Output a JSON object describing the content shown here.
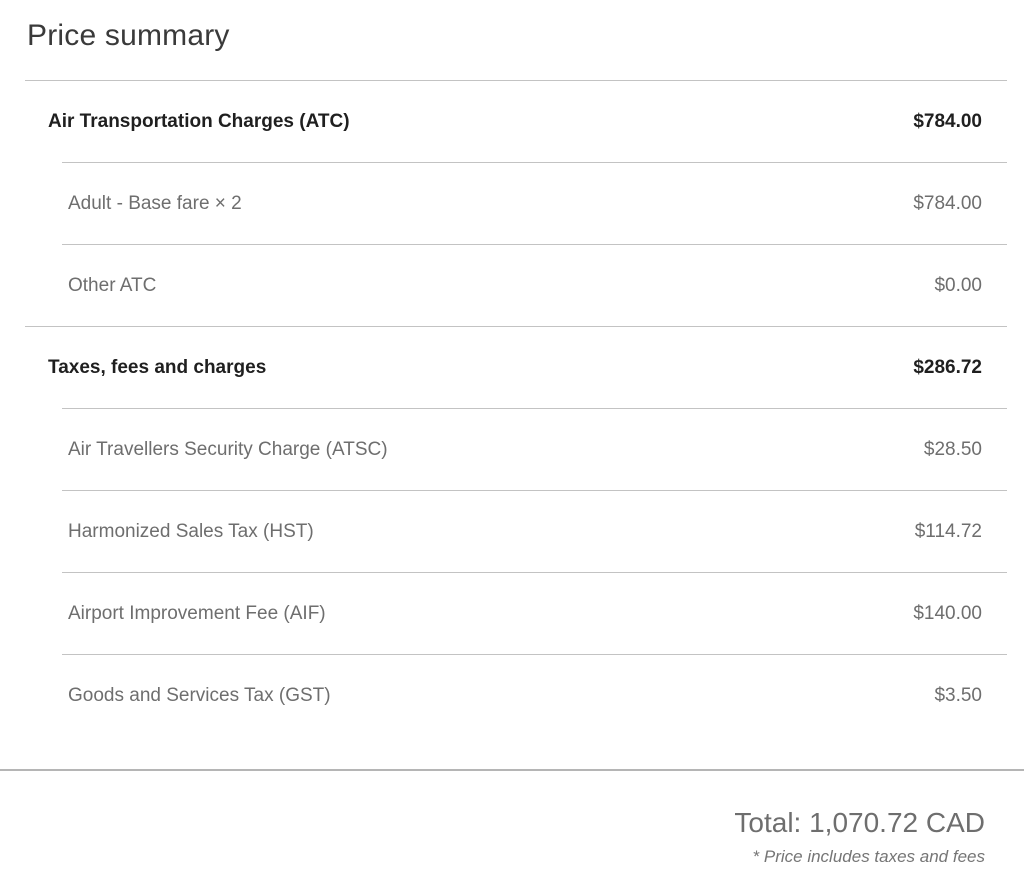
{
  "title": "Price summary",
  "sections": [
    {
      "header": {
        "label": "Air Transportation Charges (ATC)",
        "amount": "$784.00"
      },
      "items": [
        {
          "label": "Adult - Base fare × 2",
          "amount": "$784.00"
        },
        {
          "label": "Other ATC",
          "amount": "$0.00"
        }
      ]
    },
    {
      "header": {
        "label": "Taxes, fees and charges",
        "amount": "$286.72"
      },
      "items": [
        {
          "label": "Air Travellers Security Charge (ATSC)",
          "amount": "$28.50"
        },
        {
          "label": "Harmonized Sales Tax (HST)",
          "amount": "$114.72"
        },
        {
          "label": "Airport Improvement Fee (AIF)",
          "amount": "$140.00"
        },
        {
          "label": "Goods and Services Tax (GST)",
          "amount": "$3.50"
        }
      ]
    }
  ],
  "total": {
    "text": "Total: 1,070.72 CAD"
  },
  "footnote": "* Price includes taxes and fees",
  "colors": {
    "heading_text": "#3a3a3a",
    "bold_row_text": "#1f1f1f",
    "sub_row_text": "#6e6e6e",
    "divider": "#c3c3c3",
    "total_text": "#6e6e6e",
    "background": "#ffffff"
  }
}
